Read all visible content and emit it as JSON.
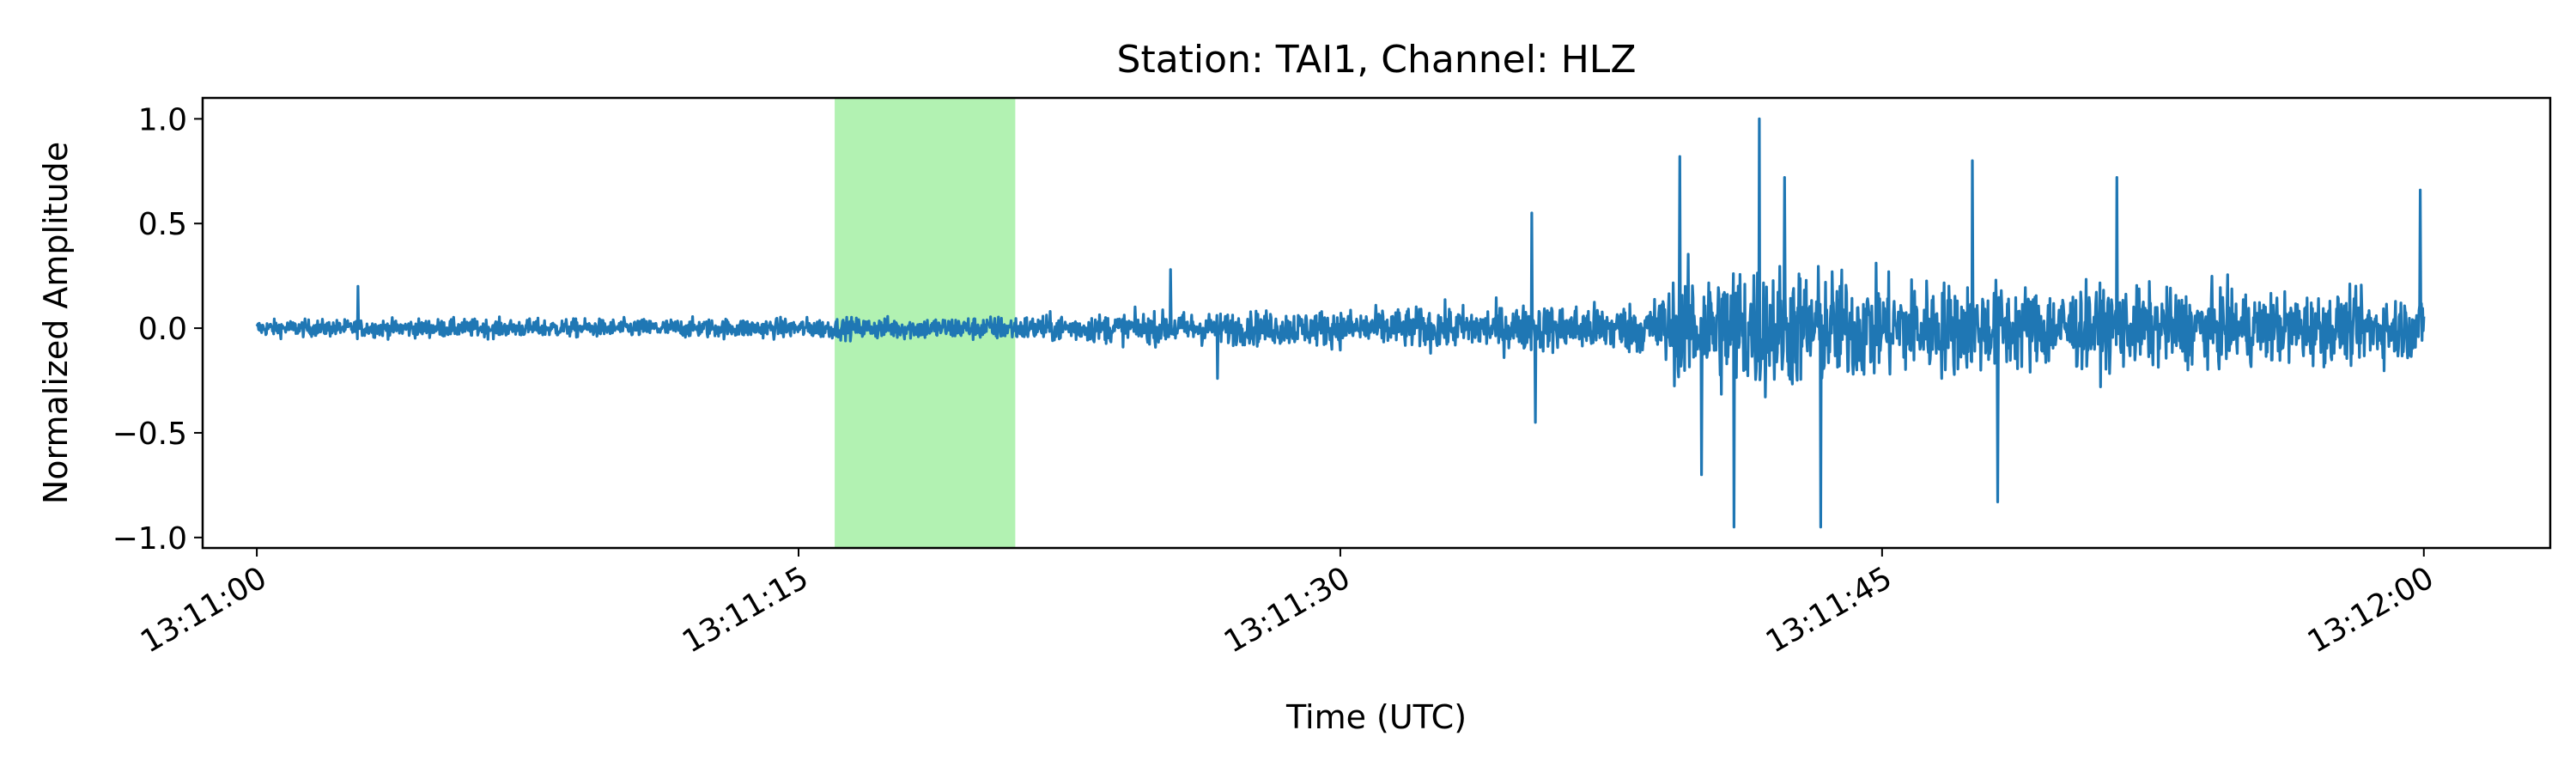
{
  "chart_data": {
    "type": "line",
    "title": "Station: TAI1, Channel: HLZ",
    "xlabel": "Time (UTC)",
    "ylabel": "Normalized Amplitude",
    "x_range_seconds": [
      -1.5,
      63.5
    ],
    "ylim": [
      -1.05,
      1.1
    ],
    "x_ticks": [
      {
        "t": 0,
        "label": "13:11:00"
      },
      {
        "t": 15,
        "label": "13:11:15"
      },
      {
        "t": 30,
        "label": "13:11:30"
      },
      {
        "t": 45,
        "label": "13:11:45"
      },
      {
        "t": 60,
        "label": "13:12:00"
      }
    ],
    "y_ticks": [
      {
        "v": 1.0,
        "label": "1.0"
      },
      {
        "v": 0.5,
        "label": "0.5"
      },
      {
        "v": 0.0,
        "label": "0.0"
      },
      {
        "v": -0.5,
        "label": "−0.5"
      },
      {
        "v": -1.0,
        "label": "−1.0"
      }
    ],
    "highlight_window": {
      "start": 16.0,
      "end": 21.0,
      "color": "#b2f2b2"
    },
    "series": [
      {
        "color": "#1f77b4",
        "envelope": [
          {
            "t": 0,
            "amp": 0.09
          },
          {
            "t": 5,
            "amp": 0.1
          },
          {
            "t": 10,
            "amp": 0.1
          },
          {
            "t": 15,
            "amp": 0.11
          },
          {
            "t": 20,
            "amp": 0.13
          },
          {
            "t": 25,
            "amp": 0.17
          },
          {
            "t": 30,
            "amp": 0.2
          },
          {
            "t": 35,
            "amp": 0.25
          },
          {
            "t": 38.5,
            "amp": 0.28
          },
          {
            "t": 39.5,
            "amp": 0.6
          },
          {
            "t": 41,
            "amp": 0.75
          },
          {
            "t": 43,
            "amp": 0.65
          },
          {
            "t": 45,
            "amp": 0.55
          },
          {
            "t": 50,
            "amp": 0.45
          },
          {
            "t": 55,
            "amp": 0.4
          },
          {
            "t": 60,
            "amp": 0.35
          }
        ],
        "spikes": [
          {
            "t": 2.8,
            "v": 0.2
          },
          {
            "t": 25.3,
            "v": 0.28
          },
          {
            "t": 26.6,
            "v": -0.24
          },
          {
            "t": 35.3,
            "v": 0.55
          },
          {
            "t": 35.4,
            "v": -0.45
          },
          {
            "t": 39.4,
            "v": 0.82
          },
          {
            "t": 40.0,
            "v": -0.7
          },
          {
            "t": 40.9,
            "v": -0.95
          },
          {
            "t": 41.6,
            "v": 1.0
          },
          {
            "t": 42.3,
            "v": 0.72
          },
          {
            "t": 43.3,
            "v": -0.95
          },
          {
            "t": 47.5,
            "v": 0.8
          },
          {
            "t": 48.2,
            "v": -0.83
          },
          {
            "t": 51.5,
            "v": 0.72
          },
          {
            "t": 59.9,
            "v": 0.66
          }
        ]
      }
    ]
  }
}
